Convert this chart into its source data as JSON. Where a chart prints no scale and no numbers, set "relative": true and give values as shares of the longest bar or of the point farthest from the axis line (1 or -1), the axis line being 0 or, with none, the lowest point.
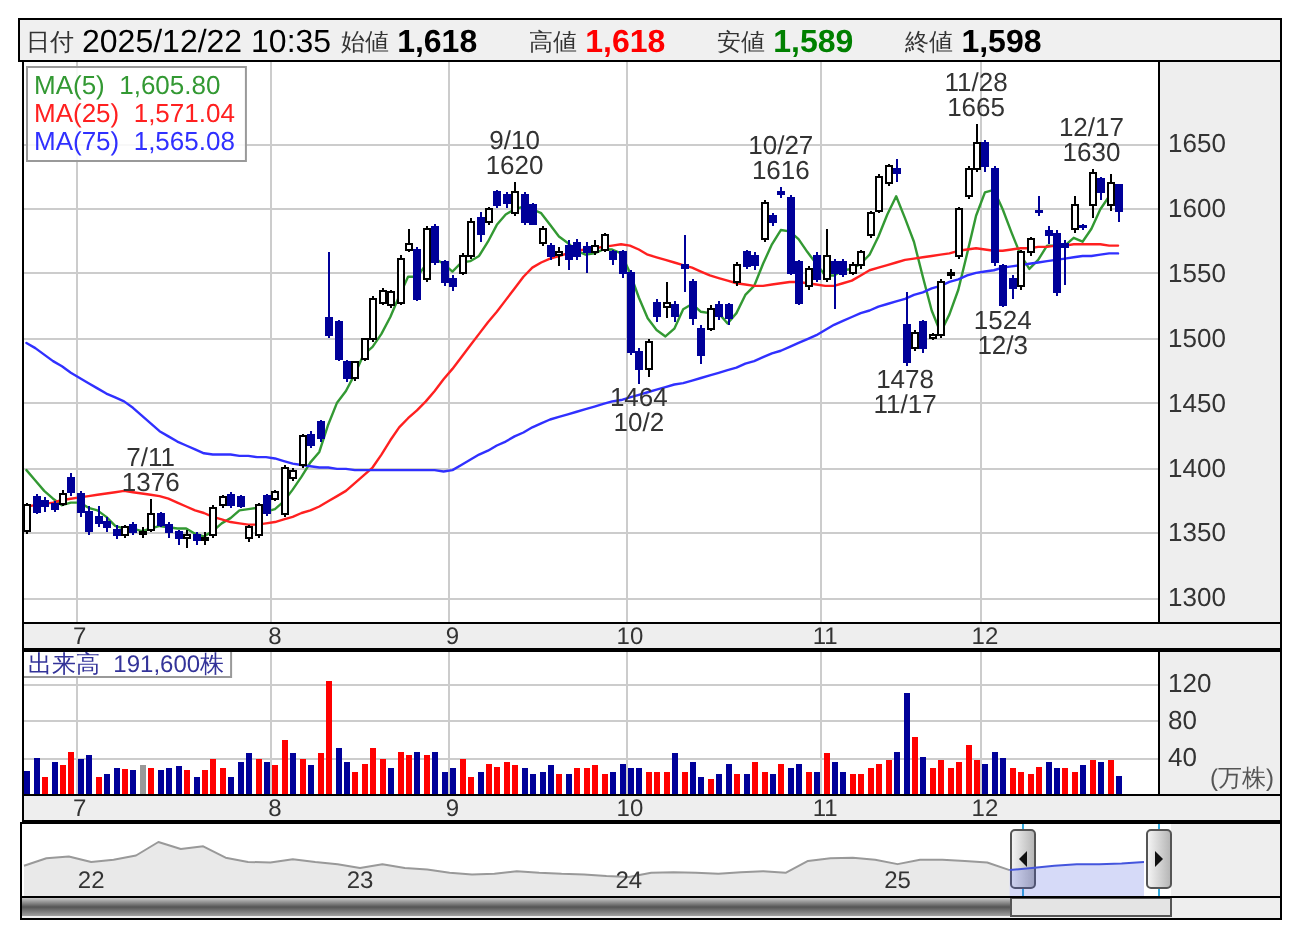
{
  "chart_data": [
    {
      "type": "other",
      "categories": [
        "日付",
        "始値",
        "高値",
        "安値",
        "終値"
      ],
      "values": [
        null,
        1618,
        1618,
        1589,
        1598
      ],
      "value_labels": [
        "2025/12/22 10:35",
        "1,618",
        "1,618",
        "1,589",
        "1,598"
      ],
      "colors": [
        "#000000",
        "#000000",
        "#ff0000",
        "#008000",
        "#000000"
      ]
    },
    {
      "type": "candlestick",
      "categories": [
        null,
        null,
        null,
        null,
        null,
        null,
        "7",
        null,
        null,
        null,
        null,
        null,
        null,
        null,
        null,
        null,
        null,
        null,
        null,
        null,
        null,
        null,
        null,
        null,
        null,
        null,
        null,
        null,
        "8",
        null,
        null,
        null,
        null,
        null,
        null,
        null,
        null,
        null,
        null,
        null,
        null,
        null,
        null,
        null,
        null,
        null,
        null,
        null,
        "9",
        null,
        null,
        null,
        null,
        null,
        null,
        null,
        null,
        null,
        null,
        null,
        null,
        null,
        null,
        null,
        null,
        null,
        null,
        null,
        "10",
        null,
        null,
        null,
        null,
        null,
        null,
        null,
        null,
        null,
        null,
        null,
        null,
        null,
        null,
        null,
        null,
        null,
        null,
        null,
        null,
        null,
        "11",
        null,
        null,
        null,
        null,
        null,
        null,
        null,
        null,
        null,
        null,
        null,
        null,
        null,
        null,
        null,
        null,
        null,
        "12",
        null,
        null,
        null,
        null,
        null,
        null,
        null,
        null,
        null,
        null,
        null,
        null,
        null,
        null,
        null
      ],
      "ohlc": [
        [
          1351,
          1373,
          1349,
          1371
        ],
        [
          1377,
          1380,
          1364,
          1366
        ],
        [
          1374,
          1377,
          1366,
          1370
        ],
        [
          1372,
          1374,
          1366,
          1368
        ],
        [
          1372,
          1383,
          1370,
          1380
        ],
        [
          1392,
          1396,
          1378,
          1381
        ],
        [
          1380,
          1382,
          1362,
          1366
        ],
        [
          1366,
          1370,
          1348,
          1351
        ],
        [
          1362,
          1370,
          1354,
          1357
        ],
        [
          1358,
          1362,
          1350,
          1354
        ],
        [
          1352,
          1356,
          1345,
          1348
        ],
        [
          1348,
          1356,
          1346,
          1354
        ],
        [
          1356,
          1358,
          1348,
          1350
        ],
        [
          1350,
          1354,
          1346,
          1350
        ],
        [
          1352,
          1376,
          1350,
          1364
        ],
        [
          1364,
          1366,
          1354,
          1356
        ],
        [
          1356,
          1358,
          1346,
          1350
        ],
        [
          1350,
          1352,
          1340,
          1346
        ],
        [
          1346,
          1352,
          1338,
          1348
        ],
        [
          1348,
          1350,
          1340,
          1344
        ],
        [
          1344,
          1350,
          1340,
          1346
        ],
        [
          1348,
          1371,
          1346,
          1369
        ],
        [
          1371,
          1379,
          1369,
          1377
        ],
        [
          1379,
          1381,
          1369,
          1371
        ],
        [
          1377,
          1379,
          1369,
          1370
        ],
        [
          1346,
          1356,
          1343,
          1354
        ],
        [
          1348,
          1373,
          1346,
          1371
        ],
        [
          1378,
          1380,
          1363,
          1365
        ],
        [
          1376,
          1383,
          1374,
          1381
        ],
        [
          1364,
          1402,
          1362,
          1400
        ],
        [
          1392,
          1400,
          1390,
          1397
        ],
        [
          1402,
          1426,
          1400,
          1424
        ],
        [
          1425,
          1428,
          1415,
          1417
        ],
        [
          1435,
          1437,
          1420,
          1423
        ],
        [
          1515,
          1566,
          1500,
          1502
        ],
        [
          1512,
          1514,
          1482,
          1484
        ],
        [
          1481,
          1483,
          1466,
          1469
        ],
        [
          1469,
          1482,
          1467,
          1481
        ],
        [
          1484,
          1500,
          1482,
          1499
        ],
        [
          1499,
          1532,
          1497,
          1530
        ],
        [
          1527,
          1538,
          1525,
          1536
        ],
        [
          1525,
          1537,
          1523,
          1535
        ],
        [
          1527,
          1564,
          1525,
          1561
        ],
        [
          1568,
          1584,
          1566,
          1572
        ],
        [
          1568,
          1570,
          1528,
          1530
        ],
        [
          1545,
          1586,
          1543,
          1584
        ],
        [
          1585,
          1588,
          1556,
          1558
        ],
        [
          1558,
          1560,
          1540,
          1543
        ],
        [
          1545,
          1548,
          1536,
          1540
        ],
        [
          1550,
          1565,
          1548,
          1563
        ],
        [
          1563,
          1592,
          1561,
          1589
        ],
        [
          1592,
          1597,
          1574,
          1580
        ],
        [
          1589,
          1601,
          1587,
          1599
        ],
        [
          1612,
          1614,
          1600,
          1602
        ],
        [
          1610,
          1612,
          1600,
          1604
        ],
        [
          1596,
          1620,
          1594,
          1612
        ],
        [
          1610,
          1612,
          1587,
          1589
        ],
        [
          1602,
          1604,
          1587,
          1588
        ],
        [
          1573,
          1586,
          1571,
          1584
        ],
        [
          1571,
          1573,
          1560,
          1563
        ],
        [
          1564,
          1570,
          1555,
          1566
        ],
        [
          1571,
          1575,
          1552,
          1561
        ],
        [
          1573,
          1576,
          1560,
          1563
        ],
        [
          1570,
          1574,
          1550,
          1566
        ],
        [
          1566,
          1575,
          1564,
          1571
        ],
        [
          1568,
          1581,
          1566,
          1579
        ],
        [
          1566,
          1568,
          1556,
          1561
        ],
        [
          1566,
          1568,
          1546,
          1550
        ],
        [
          1550,
          1552,
          1487,
          1489
        ],
        [
          1489,
          1492,
          1464,
          1476
        ],
        [
          1476,
          1499,
          1470,
          1497
        ],
        [
          1527,
          1530,
          1512,
          1517
        ],
        [
          1524,
          1543,
          1515,
          1527
        ],
        [
          1525,
          1528,
          1512,
          1517
        ],
        [
          1556,
          1579,
          1535,
          1554
        ],
        [
          1543,
          1545,
          1510,
          1515
        ],
        [
          1507,
          1510,
          1480,
          1487
        ],
        [
          1507,
          1525,
          1505,
          1522
        ],
        [
          1525,
          1528,
          1514,
          1517
        ],
        [
          1525,
          1527,
          1510,
          1515
        ],
        [
          1543,
          1558,
          1540,
          1556
        ],
        [
          1566,
          1568,
          1553,
          1555
        ],
        [
          1563,
          1566,
          1552,
          1556
        ],
        [
          1576,
          1606,
          1574,
          1604
        ],
        [
          1594,
          1596,
          1586,
          1589
        ],
        [
          1612,
          1616,
          1608,
          1611
        ],
        [
          1608,
          1610,
          1548,
          1550
        ],
        [
          1558,
          1560,
          1525,
          1527
        ],
        [
          1540,
          1555,
          1537,
          1553
        ],
        [
          1563,
          1566,
          1543,
          1545
        ],
        [
          1545,
          1584,
          1543,
          1563
        ],
        [
          1558,
          1561,
          1522,
          1550
        ],
        [
          1558,
          1561,
          1547,
          1549
        ],
        [
          1550,
          1558,
          1548,
          1556
        ],
        [
          1556,
          1568,
          1553,
          1566
        ],
        [
          1579,
          1598,
          1577,
          1596
        ],
        [
          1598,
          1626,
          1596,
          1624
        ],
        [
          1619,
          1634,
          1617,
          1632
        ],
        [
          1630,
          1638,
          1620,
          1627
        ],
        [
          1510,
          1535,
          1478,
          1481
        ],
        [
          1492,
          1506,
          1490,
          1504
        ],
        [
          1512,
          1514,
          1488,
          1492
        ],
        [
          1500,
          1504,
          1498,
          1502
        ],
        [
          1502,
          1545,
          1500,
          1543
        ],
        [
          1548,
          1553,
          1545,
          1550
        ],
        [
          1563,
          1601,
          1561,
          1599
        ],
        [
          1609,
          1632,
          1607,
          1630
        ],
        [
          1630,
          1665,
          1628,
          1650
        ],
        [
          1650,
          1652,
          1628,
          1632
        ],
        [
          1630,
          1632,
          1555,
          1558
        ],
        [
          1555,
          1557,
          1524,
          1525
        ],
        [
          1545,
          1548,
          1530,
          1538
        ],
        [
          1540,
          1568,
          1537,
          1566
        ],
        [
          1566,
          1578,
          1563,
          1576
        ],
        [
          1598,
          1609,
          1594,
          1597
        ],
        [
          1582,
          1586,
          1572,
          1579
        ],
        [
          1580,
          1583,
          1532,
          1535
        ],
        [
          1572,
          1575,
          1541,
          1570
        ],
        [
          1584,
          1609,
          1581,
          1602
        ],
        [
          1586,
          1588,
          1583,
          1585
        ],
        [
          1602,
          1630,
          1592,
          1627
        ],
        [
          1622,
          1624,
          1606,
          1612
        ],
        [
          1602,
          1626,
          1598,
          1619
        ],
        [
          1618,
          1618,
          1589,
          1598
        ]
      ],
      "colors": [
        "#ffffff",
        "#000099",
        "#000099",
        "#000099",
        "#ffffff",
        "#000099",
        "#000099",
        "#000099",
        "#000099",
        "#000099",
        "#000099",
        "#ffffff",
        "#000099",
        "#000000",
        "#ffffff",
        "#000099",
        "#000099",
        "#000099",
        "#ffffff",
        "#000099",
        "#ffffff",
        "#ffffff",
        "#ffffff",
        "#000099",
        "#000099",
        "#ffffff",
        "#ffffff",
        "#000099",
        "#ffffff",
        "#ffffff",
        "#ffffff",
        "#ffffff",
        "#000099",
        "#000099",
        "#000099",
        "#000099",
        "#000099",
        "#ffffff",
        "#ffffff",
        "#ffffff",
        "#ffffff",
        "#ffffff",
        "#ffffff",
        "#ffffff",
        "#000099",
        "#ffffff",
        "#000099",
        "#000099",
        "#000099",
        "#ffffff",
        "#ffffff",
        "#000099",
        "#ffffff",
        "#000099",
        "#000099",
        "#ffffff",
        "#000099",
        "#000099",
        "#ffffff",
        "#000099",
        "#ffffff",
        "#000099",
        "#000099",
        "#000099",
        "#ffffff",
        "#ffffff",
        "#000099",
        "#000099",
        "#000099",
        "#000099",
        "#ffffff",
        "#000099",
        "#ffffff",
        "#000099",
        "#000099",
        "#000099",
        "#000099",
        "#ffffff",
        "#000099",
        "#000099",
        "#ffffff",
        "#000099",
        "#000099",
        "#ffffff",
        "#000099",
        "#000099",
        "#000099",
        "#000099",
        "#ffffff",
        "#000099",
        "#ffffff",
        "#000099",
        "#000099",
        "#ffffff",
        "#ffffff",
        "#ffffff",
        "#ffffff",
        "#ffffff",
        "#000099",
        "#000099",
        "#ffffff",
        "#000099",
        "#ffffff",
        "#ffffff",
        "#ffffff",
        "#ffffff",
        "#ffffff",
        "#ffffff",
        "#000099",
        "#000099",
        "#000099",
        "#000099",
        "#ffffff",
        "#ffffff",
        "#000099",
        "#000099",
        "#000099",
        "#000099",
        "#ffffff",
        "#000099",
        "#ffffff",
        "#000099",
        "#ffffff",
        "#000099"
      ],
      "series": [
        {
          "type": "line",
          "name": "MA(5)  1,605.80",
          "color": "#339933",
          "values": [
            1398,
            1390,
            1382,
            1376,
            1371,
            1373,
            1373,
            1369,
            1367,
            1362,
            1355,
            1353,
            1353,
            1351,
            1353,
            1355,
            1354,
            1353,
            1353,
            1349,
            1347,
            1351,
            1357,
            1361,
            1367,
            1368,
            1369,
            1366,
            1368,
            1374,
            1383,
            1393,
            1404,
            1412,
            1433,
            1450,
            1459,
            1472,
            1487,
            1493,
            1503,
            1516,
            1532,
            1547,
            1547,
            1556,
            1561,
            1557,
            1551,
            1558,
            1559,
            1563,
            1574,
            1587,
            1595,
            1599,
            1601,
            1599,
            1596,
            1587,
            1578,
            1573,
            1567,
            1564,
            1565,
            1568,
            1568,
            1565,
            1550,
            1531,
            1515,
            1506,
            1501,
            1507,
            1522,
            1526,
            1520,
            1519,
            1519,
            1511,
            1519,
            1533,
            1540,
            1557,
            1572,
            1583,
            1582,
            1576,
            1566,
            1557,
            1548,
            1548,
            1552,
            1553,
            1557,
            1564,
            1578,
            1595,
            1609,
            1592,
            1574,
            1547,
            1521,
            1504,
            1518,
            1537,
            1565,
            1594,
            1612,
            1614,
            1599,
            1581,
            1564,
            1553,
            1560,
            1571,
            1571,
            1571,
            1577,
            1574,
            1584,
            1599,
            1609,
            null
          ]
        },
        {
          "type": "line",
          "name": "MA(25)  1,571.04",
          "color": "#ff2020",
          "values": [
            1370,
            1371,
            1372,
            1373,
            1375,
            1376,
            1377,
            1378,
            1379,
            1380,
            1381,
            1382,
            1381,
            1380,
            1379,
            1378,
            1376,
            1373,
            1370,
            1367,
            1365,
            1362,
            1360,
            1358,
            1357,
            1356,
            1356,
            1357,
            1358,
            1360,
            1362,
            1365,
            1367,
            1370,
            1374,
            1378,
            1382,
            1388,
            1394,
            1400,
            1410,
            1421,
            1431,
            1438,
            1444,
            1451,
            1459,
            1468,
            1476,
            1485,
            1494,
            1503,
            1512,
            1520,
            1529,
            1538,
            1547,
            1554,
            1558,
            1561,
            1563,
            1565,
            1567,
            1568,
            1569,
            1570,
            1571,
            1572,
            1571,
            1568,
            1564,
            1562,
            1560,
            1558,
            1556,
            1554,
            1551,
            1548,
            1546,
            1544,
            1542,
            1541,
            1540,
            1540,
            1541,
            1542,
            1543,
            1543,
            1542,
            1541,
            1540,
            1540,
            1542,
            1544,
            1548,
            1552,
            1554,
            1556,
            1558,
            1560,
            1561,
            1562,
            1563,
            1564,
            1565,
            1567,
            1568,
            1569,
            1568,
            1567,
            1567,
            1568,
            1569,
            1569,
            1570,
            1570,
            1571,
            1571,
            1572,
            1572,
            1572,
            1572,
            1571,
            1571
          ]
        },
        {
          "type": "line",
          "name": "MA(75)  1,565.08",
          "color": "#3030ff",
          "values": [
            1496,
            1492,
            1487,
            1482,
            1478,
            1473,
            1469,
            1465,
            1461,
            1457,
            1454,
            1451,
            1446,
            1440,
            1434,
            1428,
            1424,
            1420,
            1417,
            1414,
            1411,
            1410,
            1410,
            1410,
            1409,
            1409,
            1408,
            1408,
            1407,
            1405,
            1403,
            1402,
            1401,
            1400,
            1400,
            1399,
            1399,
            1398,
            1398,
            1398,
            1398,
            1398,
            1398,
            1398,
            1398,
            1398,
            1398,
            1397,
            1398,
            1402,
            1406,
            1410,
            1413,
            1417,
            1420,
            1424,
            1427,
            1431,
            1434,
            1437,
            1439,
            1441,
            1443,
            1445,
            1447,
            1449,
            1451,
            1452,
            1454,
            1456,
            1458,
            1460,
            1462,
            1464,
            1465,
            1467,
            1469,
            1471,
            1473,
            1475,
            1477,
            1480,
            1482,
            1485,
            1488,
            1490,
            1493,
            1496,
            1499,
            1502,
            1506,
            1510,
            1513,
            1516,
            1519,
            1521,
            1524,
            1526,
            1528,
            1530,
            1533,
            1535,
            1538,
            1540,
            1543,
            1545,
            1548,
            1550,
            1551,
            1552,
            1554,
            1555,
            1556,
            1557,
            1558,
            1559,
            1560,
            1561,
            1562,
            1563,
            1563,
            1564,
            1565,
            1565
          ]
        }
      ],
      "ylim": [
        1281,
        1714
      ],
      "yticks": [
        1300,
        1350,
        1400,
        1450,
        1500,
        1550,
        1600,
        1650
      ],
      "grid": true,
      "legend": "top left",
      "annotations": [
        {
          "text": "7/11\n1376",
          "y": 1376
        },
        {
          "text": "9/10\n1620",
          "y": 1620
        },
        {
          "text": "10/27\n1616",
          "y": 1616
        },
        {
          "text": "11/28\n1665",
          "y": 1665
        },
        {
          "text": "12/17\n1630",
          "y": 1630
        },
        {
          "text": "1464\n10/2",
          "y": 1464
        },
        {
          "text": "1478\n11/17",
          "y": 1478
        },
        {
          "text": "1524\n12/3",
          "y": 1524
        }
      ]
    },
    {
      "type": "bar",
      "categories": [
        null,
        null,
        null,
        null,
        null,
        null,
        "7",
        null,
        null,
        null,
        null,
        null,
        null,
        null,
        null,
        null,
        null,
        null,
        null,
        null,
        null,
        null,
        null,
        null,
        null,
        null,
        null,
        null,
        "8",
        null,
        null,
        null,
        null,
        null,
        null,
        null,
        null,
        null,
        null,
        null,
        null,
        null,
        null,
        null,
        null,
        null,
        null,
        null,
        "9",
        null,
        null,
        null,
        null,
        null,
        null,
        null,
        null,
        null,
        null,
        null,
        null,
        null,
        null,
        null,
        null,
        null,
        null,
        null,
        "10",
        null,
        null,
        null,
        null,
        null,
        null,
        null,
        null,
        null,
        null,
        null,
        null,
        null,
        null,
        null,
        null,
        null,
        null,
        null,
        null,
        null,
        "11",
        null,
        null,
        null,
        null,
        null,
        null,
        null,
        null,
        null,
        null,
        null,
        null,
        null,
        null,
        null,
        null,
        null,
        "12",
        null,
        null,
        null,
        null,
        null,
        null,
        null,
        null,
        null,
        null,
        null,
        null,
        null,
        null,
        null
      ],
      "values": [
        25,
        39,
        18,
        35,
        31,
        45,
        38,
        42,
        18,
        22,
        28,
        27,
        26,
        31,
        28,
        26,
        28,
        30,
        26,
        18,
        26,
        38,
        28,
        18,
        35,
        44,
        38,
        35,
        31,
        59,
        44,
        38,
        31,
        44,
        122,
        50,
        35,
        24,
        33,
        50,
        38,
        28,
        46,
        42,
        46,
        42,
        46,
        24,
        28,
        38,
        18,
        24,
        33,
        29,
        35,
        31,
        28,
        22,
        24,
        31,
        22,
        22,
        28,
        28,
        31,
        22,
        24,
        33,
        28,
        28,
        24,
        24,
        24,
        44,
        24,
        35,
        18,
        16,
        22,
        33,
        22,
        22,
        35,
        24,
        22,
        33,
        28,
        33,
        24,
        24,
        44,
        35,
        24,
        22,
        22,
        28,
        33,
        37,
        45,
        109,
        62,
        40,
        28,
        37,
        28,
        35,
        53,
        37,
        33,
        45,
        39,
        28,
        24,
        22,
        29,
        35,
        28,
        28,
        24,
        31,
        37,
        35,
        37,
        19
      ],
      "colors": [
        "#000099",
        "#000099",
        "#ff0000",
        "#000099",
        "#ff0000",
        "#ff0000",
        "#000099",
        "#000099",
        "#ff0000",
        "#000099",
        "#000099",
        "#ff0000",
        "#000099",
        "#999999",
        "#ff0000",
        "#000099",
        "#000099",
        "#000099",
        "#ff0000",
        "#000099",
        "#ff0000",
        "#ff0000",
        "#ff0000",
        "#000099",
        "#000099",
        "#000099",
        "#ff0000",
        "#000099",
        "#ff0000",
        "#ff0000",
        "#000099",
        "#ff0000",
        "#000099",
        "#ff0000",
        "#ff0000",
        "#000099",
        "#000099",
        "#ff0000",
        "#ff0000",
        "#ff0000",
        "#ff0000",
        "#000099",
        "#ff0000",
        "#ff0000",
        "#000099",
        "#ff0000",
        "#000099",
        "#000099",
        "#000099",
        "#ff0000",
        "#ff0000",
        "#000099",
        "#ff0000",
        "#ff0000",
        "#ff0000",
        "#ff0000",
        "#000099",
        "#000099",
        "#000099",
        "#000099",
        "#ff0000",
        "#000099",
        "#ff0000",
        "#ff0000",
        "#ff0000",
        "#ff0000",
        "#000099",
        "#000099",
        "#000099",
        "#000099",
        "#ff0000",
        "#ff0000",
        "#ff0000",
        "#000099",
        "#ff0000",
        "#000099",
        "#000099",
        "#ff0000",
        "#000099",
        "#000099",
        "#ff0000",
        "#000099",
        "#ff0000",
        "#ff0000",
        "#000099",
        "#ff0000",
        "#000099",
        "#000099",
        "#ff0000",
        "#000099",
        "#ff0000",
        "#000099",
        "#000099",
        "#ff0000",
        "#ff0000",
        "#ff0000",
        "#ff0000",
        "#ff0000",
        "#000099",
        "#000099",
        "#ff0000",
        "#000099",
        "#ff0000",
        "#ff0000",
        "#ff0000",
        "#ff0000",
        "#ff0000",
        "#ff0000",
        "#000099",
        "#000099",
        "#000099",
        "#ff0000",
        "#ff0000",
        "#ff0000",
        "#ff0000",
        "#000099",
        "#000099",
        "#ff0000",
        "#ff0000",
        "#000099",
        "#ff0000",
        "#000099",
        "#ff0000",
        "#000099"
      ],
      "ylim": [
        0,
        156
      ],
      "yticks": [
        40,
        80,
        120
      ],
      "ylabel": "(万株)",
      "grid": true,
      "annotations": [
        "出来高  191,600株"
      ]
    },
    {
      "type": "area",
      "relative": true,
      "categories": [
        null,
        null,
        null,
        "22",
        null,
        null,
        null,
        null,
        null,
        null,
        null,
        null,
        null,
        null,
        null,
        "23",
        null,
        null,
        null,
        null,
        null,
        null,
        null,
        null,
        null,
        null,
        null,
        "24",
        null,
        null,
        null,
        null,
        null,
        null,
        null,
        null,
        null,
        null,
        null,
        "25",
        null,
        null,
        null,
        null,
        null,
        null,
        null,
        null,
        null,
        null,
        null
      ],
      "series": [
        {
          "color": "#999999",
          "values": [
            0.56,
            0.7,
            0.73,
            0.63,
            0.67,
            0.75,
            1,
            0.87,
            0.92,
            0.71,
            0.63,
            0.62,
            0.68,
            0.63,
            0.59,
            0.52,
            0.59,
            0.52,
            0.49,
            0.43,
            0.4,
            0.41,
            0.46,
            0.43,
            0.41,
            0.4,
            0.37,
            0.35,
            0.43,
            0.44,
            0.43,
            0.41,
            0.44,
            0.46,
            0.43,
            0.65,
            0.7,
            0.71,
            0.67,
            0.59,
            0.67,
            0.67,
            0.65,
            0.62,
            0.48,
            null,
            null,
            null,
            null,
            null,
            null
          ]
        },
        {
          "color": "#4455dd",
          "values": [
            null,
            null,
            null,
            null,
            null,
            null,
            null,
            null,
            null,
            null,
            null,
            null,
            null,
            null,
            null,
            null,
            null,
            null,
            null,
            null,
            null,
            null,
            null,
            null,
            null,
            null,
            null,
            null,
            null,
            null,
            null,
            null,
            null,
            null,
            null,
            null,
            null,
            null,
            null,
            null,
            null,
            null,
            null,
            null,
            0.48,
            0.52,
            0.56,
            0.59,
            0.59,
            0.6,
            0.63
          ]
        }
      ]
    }
  ]
}
